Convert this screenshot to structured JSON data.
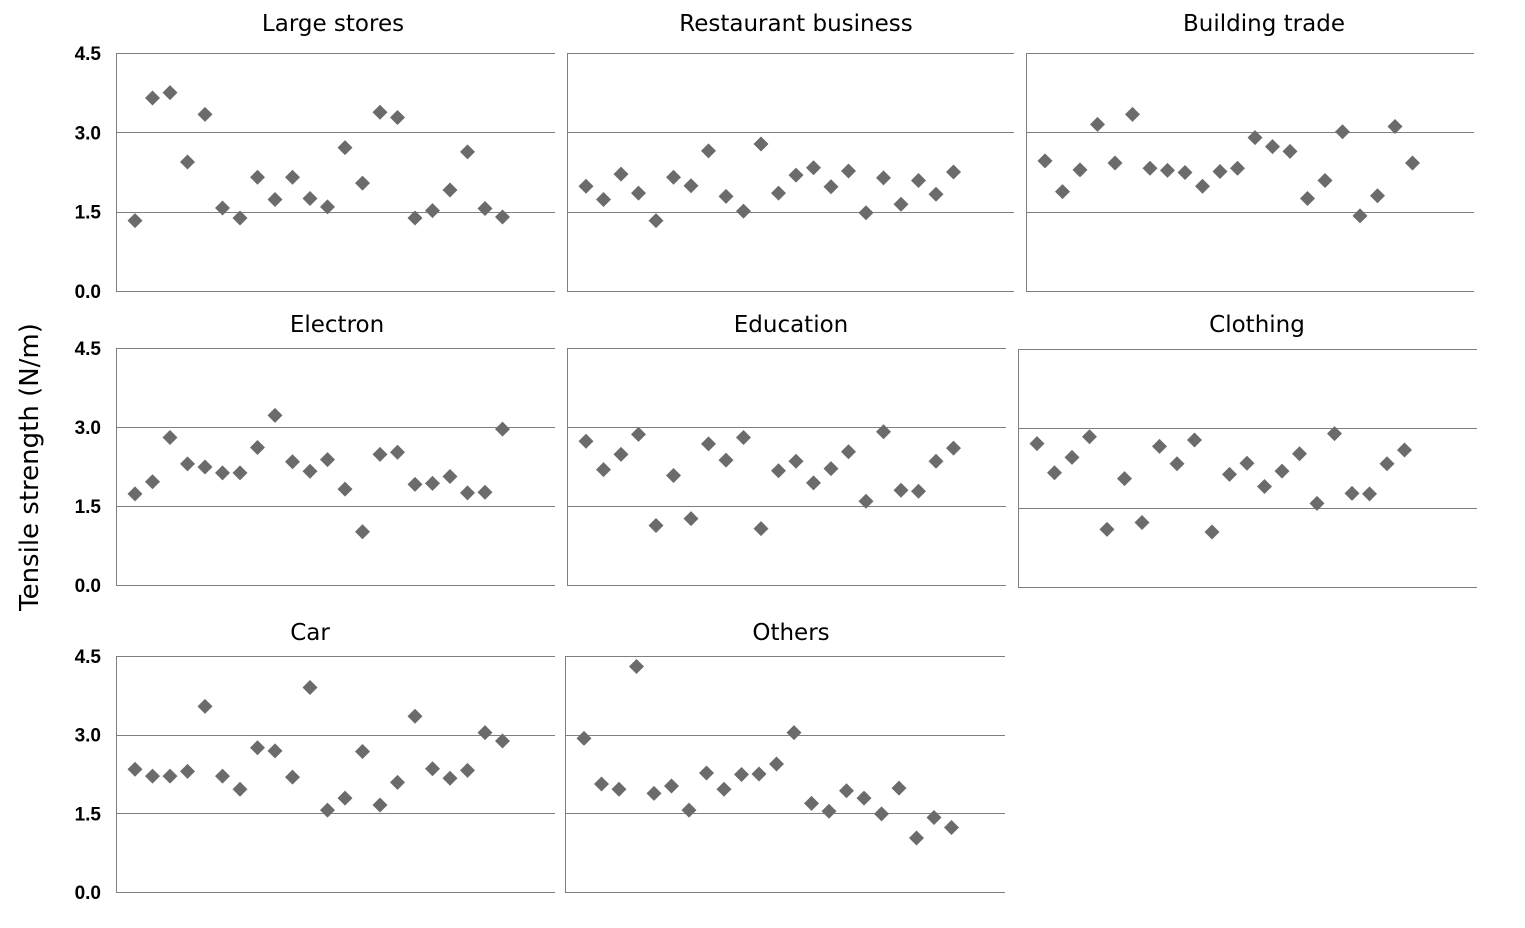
{
  "chart_data": {
    "type": "scatter",
    "ylabel": "Tensile strength (N/m)",
    "ylim": [
      0,
      4.5
    ],
    "yticks": [
      "4.5",
      "3.0",
      "1.5",
      "0.0"
    ],
    "yticks_values": [
      4.5,
      3.0,
      1.5,
      0.0
    ],
    "grid": true,
    "marker": "diamond",
    "marker_color": "#6b6b6b",
    "panels": [
      {
        "title": "Large stores",
        "values": [
          1.33,
          3.65,
          3.75,
          2.44,
          3.34,
          1.57,
          1.38,
          2.15,
          1.73,
          2.15,
          1.75,
          1.59,
          2.71,
          2.04,
          3.38,
          3.28,
          1.38,
          1.52,
          1.91,
          2.63,
          1.56,
          1.4
        ]
      },
      {
        "title": "Restaurant business",
        "values": [
          1.98,
          1.73,
          2.21,
          1.85,
          1.33,
          2.15,
          1.99,
          2.65,
          1.79,
          1.51,
          2.78,
          1.85,
          2.19,
          2.33,
          1.97,
          2.27,
          1.48,
          2.14,
          1.64,
          2.09,
          1.83,
          2.25
        ]
      },
      {
        "title": "Building trade",
        "values": [
          2.46,
          1.88,
          2.29,
          3.15,
          2.42,
          3.34,
          2.32,
          2.28,
          2.24,
          1.98,
          2.26,
          2.32,
          2.9,
          2.73,
          2.64,
          1.75,
          2.09,
          3.01,
          1.42,
          1.8,
          3.11,
          2.42
        ]
      },
      {
        "title": "Electron",
        "values": [
          1.73,
          1.96,
          2.8,
          2.3,
          2.24,
          2.13,
          2.13,
          2.61,
          3.22,
          2.34,
          2.16,
          2.38,
          1.82,
          1.01,
          2.48,
          2.52,
          1.91,
          1.93,
          2.06,
          1.75,
          1.76,
          2.96
        ]
      },
      {
        "title": "Education",
        "values": [
          2.73,
          2.19,
          2.48,
          2.86,
          1.13,
          2.08,
          1.26,
          2.68,
          2.37,
          2.8,
          1.07,
          2.17,
          2.35,
          1.94,
          2.21,
          2.53,
          1.59,
          2.91,
          1.8,
          1.78,
          2.35,
          2.6
        ]
      },
      {
        "title": "Clothing",
        "values": [
          2.71,
          2.16,
          2.45,
          2.84,
          1.09,
          2.05,
          1.22,
          2.66,
          2.33,
          2.78,
          1.04,
          2.13,
          2.34,
          1.9,
          2.19,
          2.52,
          1.58,
          2.9,
          1.77,
          1.76,
          2.33,
          2.59
        ]
      },
      {
        "title": "Car",
        "values": [
          2.34,
          2.21,
          2.21,
          2.3,
          3.54,
          2.21,
          1.96,
          2.75,
          2.69,
          2.19,
          3.9,
          1.56,
          1.79,
          2.68,
          1.66,
          2.09,
          3.35,
          2.35,
          2.17,
          2.32,
          3.04,
          2.88
        ]
      },
      {
        "title": "Others",
        "values": [
          2.93,
          2.06,
          1.96,
          4.3,
          1.88,
          2.02,
          1.56,
          2.27,
          1.96,
          2.24,
          2.25,
          2.44,
          3.04,
          1.69,
          1.54,
          1.93,
          1.79,
          1.49,
          1.98,
          1.03,
          1.42,
          1.23
        ]
      }
    ]
  }
}
